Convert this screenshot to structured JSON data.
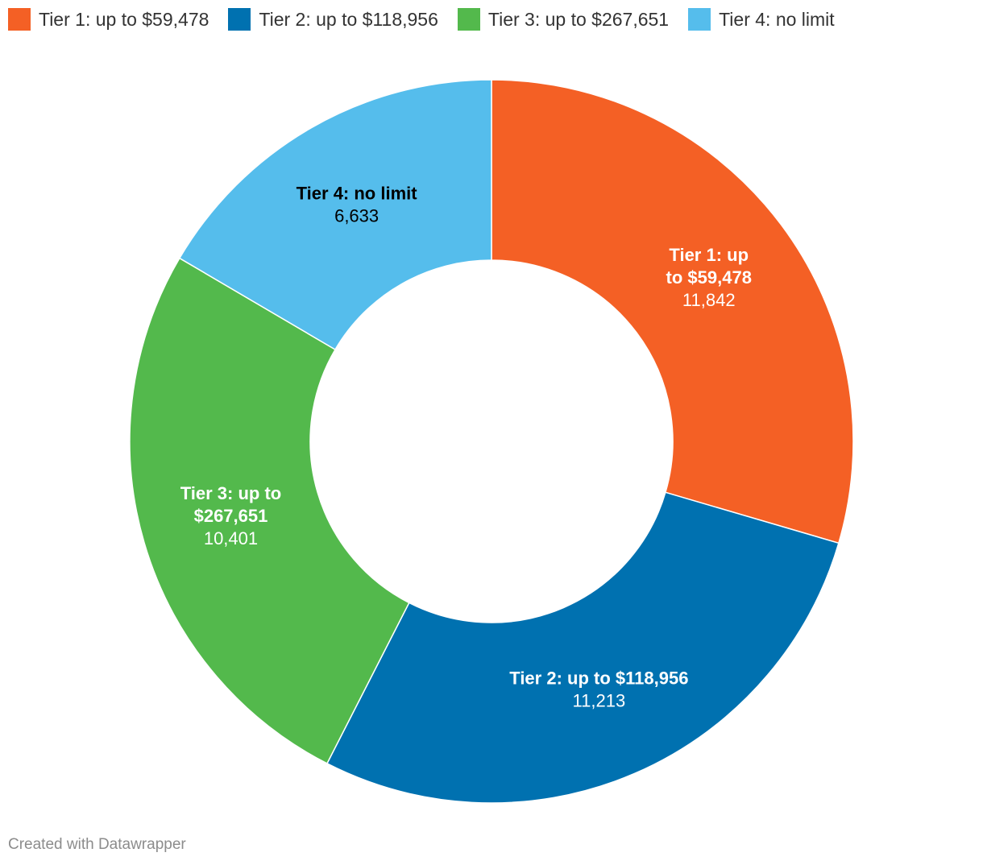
{
  "chart_data": {
    "type": "pie",
    "variant": "donut",
    "legend_placement": "top-left",
    "series": [
      {
        "name": "Tier 1: up to $59,478",
        "value": 11842,
        "value_label": "11,842",
        "label_lines": [
          "Tier 1: up",
          "to $59,478"
        ],
        "color": "#f46025",
        "label_color": "#ffffff"
      },
      {
        "name": "Tier 2: up to $118,956",
        "value": 11213,
        "value_label": "11,213",
        "label_lines": [
          "Tier 2: up to $118,956"
        ],
        "color": "#0071b0",
        "label_color": "#ffffff"
      },
      {
        "name": "Tier 3: up to $267,651",
        "value": 10401,
        "value_label": "10,401",
        "label_lines": [
          "Tier 3: up to",
          "$267,651"
        ],
        "color": "#53b94c",
        "label_color": "#ffffff"
      },
      {
        "name": "Tier 4: no limit",
        "value": 6633,
        "value_label": "6,633",
        "label_lines": [
          "Tier 4: no limit"
        ],
        "color": "#55bdec",
        "label_color": "#000000"
      }
    ]
  },
  "footer": {
    "credit": "Created with Datawrapper"
  }
}
